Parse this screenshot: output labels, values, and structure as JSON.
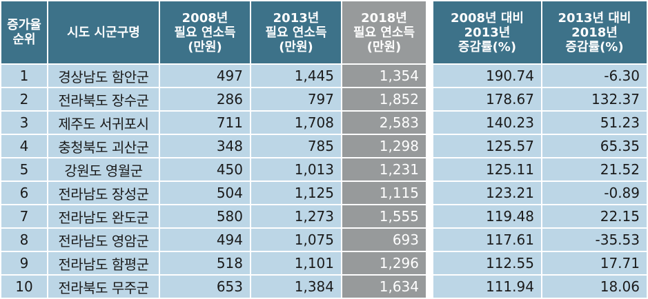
{
  "headers": {
    "rank": [
      "증가율",
      "순위"
    ],
    "region": [
      "시도 시군구명"
    ],
    "income_2008": [
      "2008년",
      "필요 연소득",
      "(만원)"
    ],
    "income_2013": [
      "2013년",
      "필요 연소득",
      "(만원)"
    ],
    "income_2018": [
      "2018년",
      "필요 연소득",
      "(만원)"
    ],
    "growth_0813": [
      "2008년 대비",
      "2013년",
      "증감률(%)"
    ],
    "growth_1318": [
      "2013년 대비",
      "2018년",
      "증감률(%)"
    ]
  },
  "rows": [
    {
      "rank": "1",
      "region": "경상남도 함안군",
      "income_2008": "497",
      "income_2013": "1,445",
      "income_2018": "1,354",
      "growth_0813": "190.74",
      "growth_1318": "-6.30"
    },
    {
      "rank": "2",
      "region": "전라북도 장수군",
      "income_2008": "286",
      "income_2013": "797",
      "income_2018": "1,852",
      "growth_0813": "178.67",
      "growth_1318": "132.37"
    },
    {
      "rank": "3",
      "region": "제주도 서귀포시",
      "income_2008": "711",
      "income_2013": "1,708",
      "income_2018": "2,583",
      "growth_0813": "140.23",
      "growth_1318": "51.23"
    },
    {
      "rank": "4",
      "region": "충청북도 괴산군",
      "income_2008": "348",
      "income_2013": "785",
      "income_2018": "1,298",
      "growth_0813": "125.57",
      "growth_1318": "65.35"
    },
    {
      "rank": "5",
      "region": "강원도 영월군",
      "income_2008": "450",
      "income_2013": "1,013",
      "income_2018": "1,231",
      "growth_0813": "125.11",
      "growth_1318": "21.52"
    },
    {
      "rank": "6",
      "region": "전라남도 장성군",
      "income_2008": "504",
      "income_2013": "1,125",
      "income_2018": "1,115",
      "growth_0813": "123.21",
      "growth_1318": "-0.89"
    },
    {
      "rank": "7",
      "region": "전라남도 완도군",
      "income_2008": "580",
      "income_2013": "1,273",
      "income_2018": "1,555",
      "growth_0813": "119.48",
      "growth_1318": "22.15"
    },
    {
      "rank": "8",
      "region": "전라남도 영암군",
      "income_2008": "494",
      "income_2013": "1,075",
      "income_2018": "693",
      "growth_0813": "117.61",
      "growth_1318": "-35.53"
    },
    {
      "rank": "9",
      "region": "전라남도 함평군",
      "income_2008": "518",
      "income_2013": "1,101",
      "income_2018": "1,296",
      "growth_0813": "112.55",
      "growth_1318": "17.71"
    },
    {
      "rank": "10",
      "region": "전라북도 무주군",
      "income_2008": "653",
      "income_2013": "1,384",
      "income_2018": "1,634",
      "growth_0813": "111.94",
      "growth_1318": "18.06"
    }
  ],
  "colors": {
    "header_blue": "#3d7289",
    "cell_light_blue": "#bcd6e6",
    "grey": "#979a9b"
  }
}
